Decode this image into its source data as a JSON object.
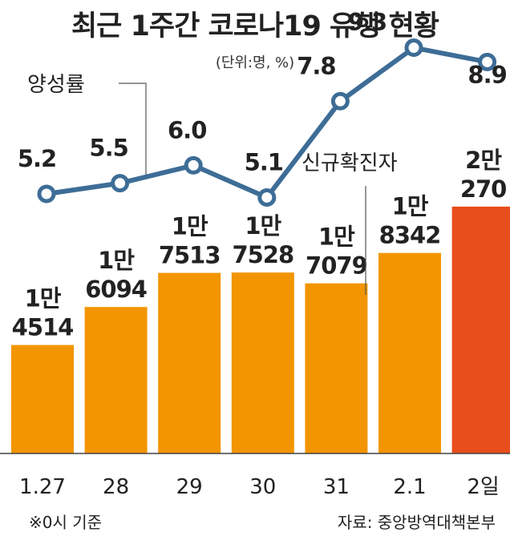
{
  "title": "최근 1주간 코로나19 유행 현황",
  "unit": "(단위:명, %)",
  "footer": {
    "note": "※0시 기준",
    "source": "자료: 중앙방역대책본부"
  },
  "colors": {
    "bar": "#F29500",
    "bar_highlight": "#E84E1B",
    "line": "#3D6D96",
    "text": "#222222"
  },
  "chart_data": {
    "type": "bar+line",
    "categories": [
      "1.27",
      "28",
      "29",
      "30",
      "31",
      "2.1",
      "2일"
    ],
    "bars": {
      "name": "신규확진자",
      "values": [
        14514,
        16094,
        17513,
        17528,
        17079,
        18342,
        20270
      ],
      "labels": [
        [
          "1만",
          "4514"
        ],
        [
          "1만",
          "6094"
        ],
        [
          "1만",
          "7513"
        ],
        [
          "1만",
          "7528"
        ],
        [
          "1만",
          "7079"
        ],
        [
          "1만",
          "8342"
        ],
        [
          "2만",
          "270"
        ]
      ]
    },
    "line": {
      "name": "양성률",
      "values": [
        5.2,
        5.5,
        6.0,
        5.1,
        7.8,
        9.3,
        8.9
      ],
      "labels": [
        "5.2",
        "5.5",
        "6.0",
        "5.1",
        "7.8",
        "9.3",
        "8.9"
      ]
    }
  }
}
